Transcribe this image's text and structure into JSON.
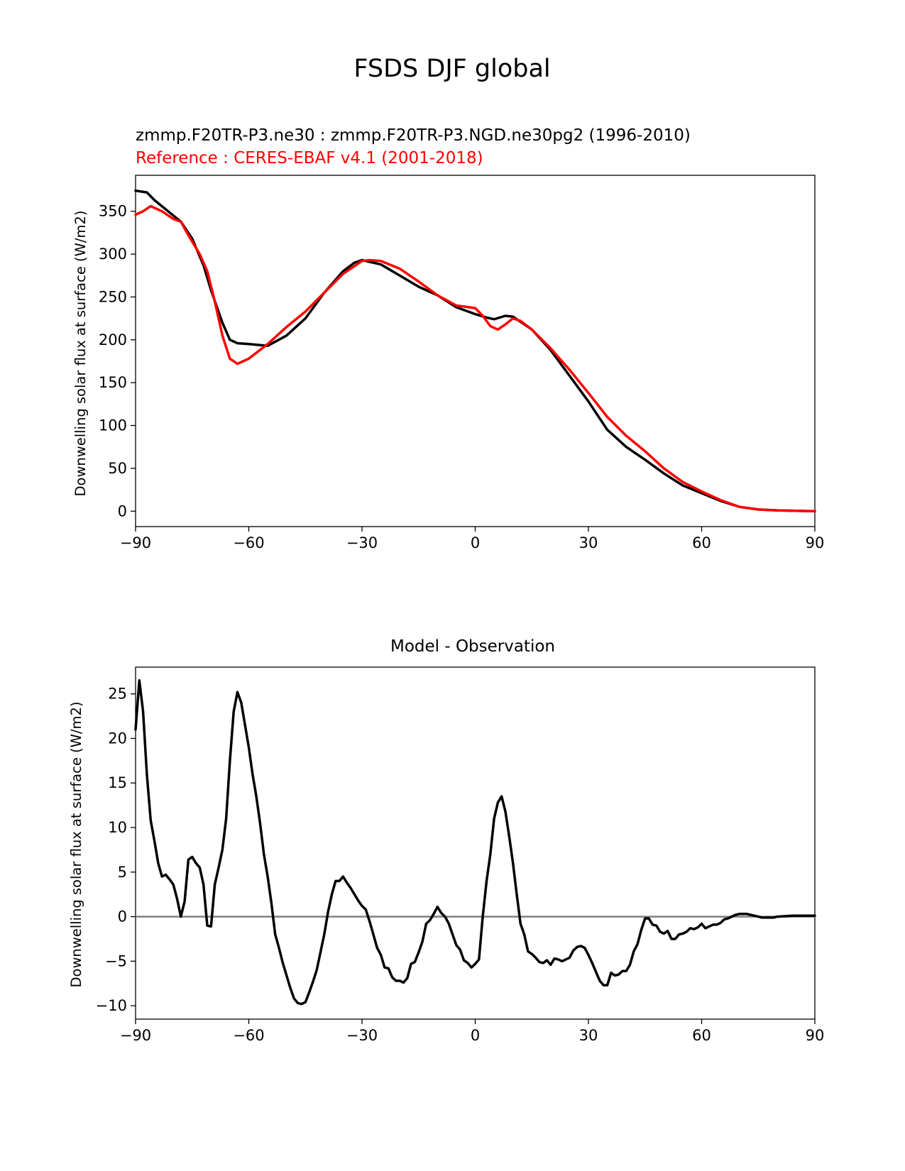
{
  "figure": {
    "title": "FSDS DJF global"
  },
  "chart_data": [
    {
      "type": "line",
      "title": "",
      "subtitle_test": "zmmp.F20TR-P3.ne30 : zmmp.F20TR-P3.NGD.ne30pg2 (1996-2010)",
      "subtitle_ref": "Reference : CERES-EBAF v4.1 (2001-2018)",
      "xlabel": "",
      "ylabel": "Downwelling solar flux at surface (W/m2)",
      "xlim": [
        -90,
        90
      ],
      "ylim": [
        -18,
        392
      ],
      "xticks": [
        -90,
        -60,
        -30,
        0,
        30,
        60,
        90
      ],
      "xtick_labels": [
        "−90",
        "−60",
        "−30",
        "0",
        "30",
        "60",
        "90"
      ],
      "yticks": [
        0,
        50,
        100,
        150,
        200,
        250,
        300,
        350
      ],
      "ytick_labels": [
        "0",
        "50",
        "100",
        "150",
        "200",
        "250",
        "300",
        "350"
      ],
      "grid": false,
      "series": [
        {
          "color": "#000000",
          "x": [
            -90,
            -87,
            -85,
            -80,
            -78,
            -75,
            -72,
            -70,
            -67,
            -65,
            -63,
            -60,
            -55,
            -50,
            -45,
            -40,
            -35,
            -32,
            -30,
            -25,
            -20,
            -15,
            -10,
            -5,
            0,
            3,
            5,
            8,
            10,
            15,
            20,
            25,
            30,
            35,
            40,
            45,
            50,
            55,
            60,
            65,
            70,
            75,
            80,
            85,
            90
          ],
          "values": [
            374,
            372,
            363,
            345,
            338,
            318,
            287,
            258,
            220,
            200,
            196,
            195,
            193,
            205,
            225,
            255,
            280,
            290,
            293,
            288,
            275,
            262,
            252,
            238,
            230,
            226,
            224,
            228,
            227,
            212,
            188,
            158,
            128,
            95,
            75,
            60,
            44,
            30,
            21,
            12,
            5,
            2,
            1,
            0.5,
            0
          ]
        },
        {
          "color": "#ff0000",
          "x": [
            -90,
            -88,
            -86,
            -83,
            -80,
            -78,
            -76,
            -73,
            -71,
            -69,
            -67,
            -65,
            -63,
            -60,
            -55,
            -50,
            -45,
            -40,
            -35,
            -30,
            -28,
            -25,
            -20,
            -15,
            -10,
            -5,
            0,
            2,
            4,
            6,
            8,
            10,
            12,
            15,
            20,
            25,
            30,
            35,
            40,
            45,
            50,
            55,
            60,
            65,
            70,
            75,
            80,
            85,
            90
          ],
          "values": [
            346,
            350,
            356,
            350,
            341,
            338,
            322,
            300,
            280,
            245,
            205,
            178,
            172,
            178,
            195,
            215,
            233,
            255,
            277,
            292,
            293,
            292,
            283,
            268,
            252,
            240,
            237,
            228,
            216,
            212,
            218,
            225,
            222,
            212,
            190,
            165,
            138,
            110,
            88,
            70,
            50,
            34,
            23,
            13,
            5,
            2,
            1,
            0.5,
            0
          ]
        }
      ]
    },
    {
      "type": "line",
      "title": "Model - Observation",
      "xlabel": "",
      "ylabel": "Downwelling solar flux at surface (W/m2)",
      "xlim": [
        -90,
        90
      ],
      "ylim": [
        -11.5,
        28
      ],
      "xticks": [
        -90,
        -60,
        -30,
        0,
        30,
        60,
        90
      ],
      "xtick_labels": [
        "−90",
        "−60",
        "−30",
        "0",
        "30",
        "60",
        "90"
      ],
      "yticks": [
        -10,
        -5,
        0,
        5,
        10,
        15,
        20,
        25
      ],
      "ytick_labels": [
        "−10",
        "−5",
        "0",
        "5",
        "10",
        "15",
        "20",
        "25"
      ],
      "grid": false,
      "zero_line_color": "#808080",
      "series": [
        {
          "color": "#000000",
          "x": [
            -90,
            -89,
            -88,
            -87,
            -86,
            -85,
            -84,
            -83,
            -82,
            -81,
            -80,
            -79,
            -78,
            -77,
            -76,
            -75,
            -74,
            -73,
            -72,
            -71,
            -70,
            -69,
            -68,
            -67,
            -66,
            -65,
            -64,
            -63,
            -62,
            -61,
            -60,
            -59,
            -58,
            -57,
            -56,
            -55,
            -54,
            -53,
            -52,
            -51,
            -50,
            -49,
            -48,
            -47,
            -46,
            -45,
            -44,
            -43,
            -42,
            -41,
            -40,
            -39,
            -38,
            -37,
            -36,
            -35,
            -34,
            -33,
            -32,
            -31,
            -30,
            -29,
            -28,
            -27,
            -26,
            -25,
            -24,
            -23,
            -22,
            -21,
            -20,
            -19,
            -18,
            -17,
            -16,
            -15,
            -14,
            -13,
            -12,
            -11,
            -10,
            -9,
            -8,
            -7,
            -6,
            -5,
            -4,
            -3,
            -2,
            -1,
            0,
            1,
            2,
            3,
            4,
            5,
            6,
            7,
            8,
            9,
            10,
            11,
            12,
            13,
            14,
            15,
            16,
            17,
            18,
            19,
            20,
            21,
            22,
            23,
            24,
            25,
            26,
            27,
            28,
            29,
            30,
            31,
            32,
            33,
            34,
            35,
            36,
            37,
            38,
            39,
            40,
            41,
            42,
            43,
            44,
            45,
            46,
            47,
            48,
            49,
            50,
            51,
            52,
            53,
            54,
            55,
            56,
            57,
            58,
            59,
            60,
            61,
            62,
            63,
            64,
            65,
            66,
            67,
            68,
            69,
            70,
            71,
            72,
            73,
            74,
            75,
            76,
            77,
            78,
            79,
            80,
            82,
            84,
            86,
            88,
            90
          ],
          "values": [
            21,
            26.5,
            23,
            16,
            10.8,
            8.5,
            6,
            4.5,
            4.7,
            4.2,
            3.6,
            2,
            0,
            1.7,
            6.4,
            6.7,
            6,
            5.5,
            3.6,
            -1,
            -1.1,
            3.6,
            5.5,
            7.5,
            11,
            17.5,
            23,
            25.2,
            24,
            21.5,
            19,
            16,
            13.5,
            10.5,
            7,
            4.5,
            1.5,
            -2,
            -3.5,
            -5.2,
            -6.6,
            -8,
            -9.2,
            -9.7,
            -9.8,
            -9.6,
            -8.5,
            -7.3,
            -6,
            -4,
            -2,
            0.5,
            2.5,
            4,
            4,
            4.5,
            3.8,
            3.2,
            2.5,
            1.8,
            1.2,
            0.8,
            -0.5,
            -2,
            -3.5,
            -4.3,
            -5.7,
            -5.8,
            -6.8,
            -7.2,
            -7.2,
            -7.4,
            -6.9,
            -5.3,
            -5.1,
            -4,
            -2.8,
            -0.8,
            -0.4,
            0.3,
            1.1,
            0.4,
            0,
            -0.8,
            -2,
            -3.2,
            -3.7,
            -4.9,
            -5.2,
            -5.7,
            -5.3,
            -4.8,
            0,
            4,
            7,
            11,
            12.8,
            13.5,
            11.8,
            9,
            6,
            2.5,
            -0.8,
            -2,
            -3.9,
            -4.2,
            -4.6,
            -5.1,
            -5.2,
            -4.9,
            -5.4,
            -4.7,
            -4.8,
            -5,
            -4.8,
            -4.6,
            -3.8,
            -3.4,
            -3.3,
            -3.5,
            -4.3,
            -5.2,
            -6.2,
            -7.2,
            -7.7,
            -7.7,
            -6.3,
            -6.6,
            -6.5,
            -6.1,
            -6.1,
            -5.4,
            -3.9,
            -3.1,
            -1.5,
            -0.2,
            -0.2,
            -0.9,
            -1.0,
            -1.7,
            -1.9,
            -1.6,
            -2.5,
            -2.5,
            -2.0,
            -1.9,
            -1.7,
            -1.3,
            -1.4,
            -1.2,
            -0.8,
            -1.3,
            -1.1,
            -0.9,
            -0.9,
            -0.7,
            -0.3,
            -0.2,
            0.0,
            0.2,
            0.3,
            0.3,
            0.3,
            0.2,
            0.1,
            0,
            -0.1,
            -0.1,
            -0.1,
            -0.1,
            0,
            0.05,
            0.1,
            0.1,
            0.1,
            0.1
          ]
        }
      ]
    }
  ]
}
